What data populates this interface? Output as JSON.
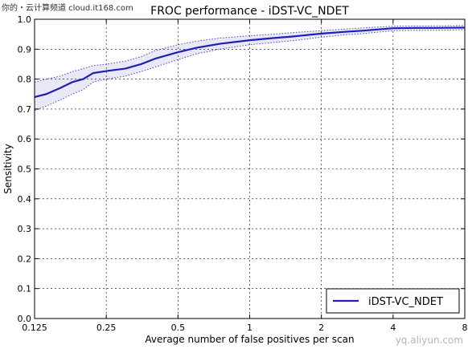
{
  "watermark_top": "你的・云计算频道 cloud.it168.com",
  "watermark_bottom": "yq.aliyun.com",
  "chart_data": {
    "type": "line",
    "title": "FROC performance - iDST-VC_NDET",
    "xlabel": "Average number of false positives per scan",
    "ylabel": "Sensitivity",
    "x_scale": "log2",
    "xlim": [
      0.125,
      8
    ],
    "ylim": [
      0.0,
      1.0
    ],
    "x_ticks": [
      "0.125",
      "0.25",
      "0.5",
      "1",
      "2",
      "4",
      "8"
    ],
    "x_tick_values": [
      0.125,
      0.25,
      0.5,
      1,
      2,
      4,
      8
    ],
    "y_ticks": [
      "0.0",
      "0.1",
      "0.2",
      "0.3",
      "0.4",
      "0.5",
      "0.6",
      "0.7",
      "0.8",
      "0.9",
      "1.0"
    ],
    "y_tick_values": [
      0.0,
      0.1,
      0.2,
      0.3,
      0.4,
      0.5,
      0.6,
      0.7,
      0.8,
      0.9,
      1.0
    ],
    "grid": true,
    "legend_position": "bottom-right",
    "series": [
      {
        "name": "iDST-VC_NDET",
        "color": "#1f1fb4",
        "x": [
          0.125,
          0.14,
          0.16,
          0.18,
          0.2,
          0.22,
          0.25,
          0.3,
          0.35,
          0.4,
          0.5,
          0.6,
          0.75,
          1.0,
          1.25,
          1.5,
          2.0,
          2.5,
          3.0,
          4.0,
          5.0,
          6.0,
          8.0
        ],
        "values": [
          0.74,
          0.75,
          0.77,
          0.79,
          0.8,
          0.82,
          0.827,
          0.835,
          0.85,
          0.868,
          0.89,
          0.905,
          0.918,
          0.93,
          0.937,
          0.942,
          0.952,
          0.958,
          0.962,
          0.97,
          0.971,
          0.971,
          0.972
        ],
        "upper": [
          0.79,
          0.8,
          0.81,
          0.825,
          0.835,
          0.845,
          0.85,
          0.86,
          0.875,
          0.895,
          0.915,
          0.927,
          0.937,
          0.945,
          0.95,
          0.955,
          0.962,
          0.967,
          0.971,
          0.977,
          0.978,
          0.978,
          0.979
        ],
        "lower": [
          0.695,
          0.71,
          0.73,
          0.75,
          0.765,
          0.79,
          0.8,
          0.81,
          0.825,
          0.84,
          0.865,
          0.885,
          0.9,
          0.915,
          0.922,
          0.928,
          0.94,
          0.948,
          0.952,
          0.962,
          0.963,
          0.963,
          0.965
        ]
      }
    ]
  }
}
